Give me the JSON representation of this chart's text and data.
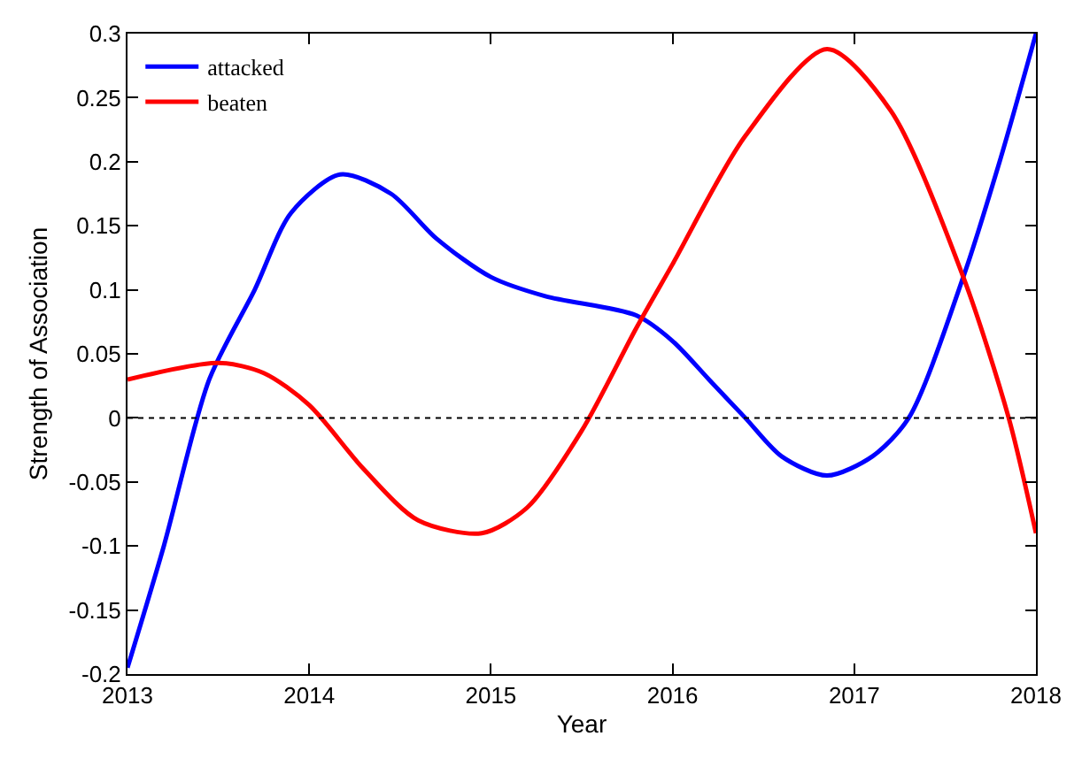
{
  "chart_data": {
    "type": "line",
    "xlabel": "Year",
    "ylabel": "Strength of Association",
    "xlim": [
      2013,
      2018
    ],
    "xticks": [
      2013,
      2014,
      2015,
      2016,
      2017,
      2018
    ],
    "ylim": [
      -0.2,
      0.3
    ],
    "yticks": [
      -0.2,
      -0.15,
      -0.1,
      -0.05,
      0,
      0.05,
      0.1,
      0.15,
      0.2,
      0.25,
      0.3
    ],
    "grid": false,
    "legend": "top left",
    "marker": "none",
    "line_style": "solid",
    "ref_lines": [
      {
        "axis": "y",
        "value": 0,
        "label": null,
        "color": "#000000",
        "line_style": "dotted"
      }
    ],
    "series": [
      {
        "name": "attacked",
        "color": "#0000ff",
        "x": [
          2013,
          2013.2,
          2013.45,
          2013.7,
          2013.9,
          2014.17,
          2014.45,
          2014.7,
          2015,
          2015.3,
          2015.8,
          2016,
          2016.2,
          2016.4,
          2016.6,
          2016.85,
          2017.1,
          2017.3,
          2017.6,
          2017.8,
          2018
        ],
        "values": [
          -0.195,
          -0.1,
          0.03,
          0.1,
          0.16,
          0.19,
          0.175,
          0.14,
          0.11,
          0.095,
          0.08,
          0.06,
          0.03,
          0,
          -0.03,
          -0.045,
          -0.03,
          0,
          0.11,
          0.2,
          0.3
        ]
      },
      {
        "name": "beaten",
        "color": "#ff0000",
        "x": [
          2013,
          2013.5,
          2013.75,
          2014,
          2014.3,
          2014.6,
          2014.95,
          2015.2,
          2015.5,
          2015.8,
          2016,
          2016.4,
          2016.85,
          2017.2,
          2017.6,
          2017.85,
          2018
        ],
        "values": [
          0.03,
          0.043,
          0.035,
          0.01,
          -0.04,
          -0.08,
          -0.09,
          -0.07,
          -0.01,
          0.07,
          0.12,
          0.22,
          0.288,
          0.24,
          0.11,
          0,
          -0.09
        ]
      }
    ]
  }
}
